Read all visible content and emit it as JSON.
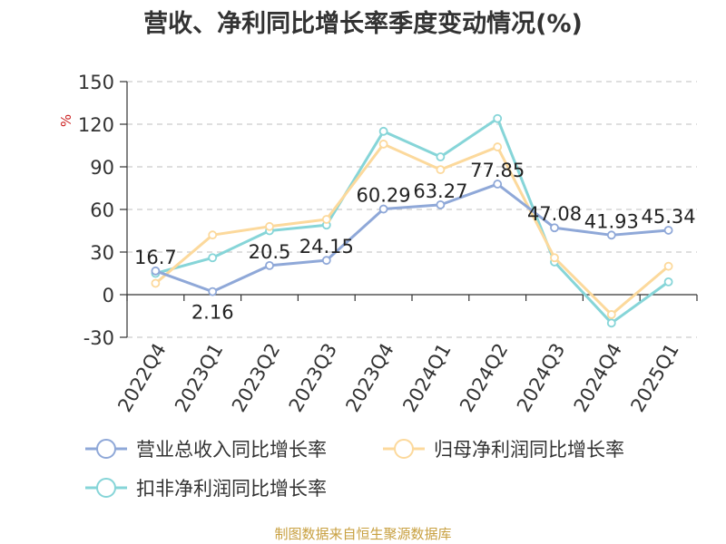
{
  "title": "营收、净利同比增长率季度变动情况(%)",
  "source_note": "制图数据来自恒生聚源数据库",
  "chart_data": {
    "type": "line",
    "title": "营收、净利同比增长率季度变动情况(%)",
    "ylabel": "%",
    "xlabel": "",
    "ylim": [
      -30,
      150
    ],
    "yticks": [
      -30,
      0,
      30,
      60,
      90,
      120,
      150
    ],
    "grid": true,
    "legend_position": "bottom",
    "categories": [
      "2022Q4",
      "2023Q1",
      "2023Q2",
      "2023Q3",
      "2023Q4",
      "2024Q1",
      "2024Q2",
      "2024Q3",
      "2024Q4",
      "2025Q1"
    ],
    "series": [
      {
        "name": "营业总收入同比增长率",
        "color": "#8fa8d8",
        "values": [
          16.7,
          2.16,
          20.5,
          24.15,
          60.29,
          63.27,
          77.85,
          47.08,
          41.93,
          45.34
        ],
        "labels": [
          "16.7",
          "2.16",
          "20.5",
          "24.15",
          "60.29",
          "63.27",
          "77.85",
          "47.08",
          "41.93",
          "45.34"
        ]
      },
      {
        "name": "归母净利润同比增长率",
        "color": "#fcd99c",
        "values": [
          8,
          42,
          48,
          53,
          106,
          88,
          104,
          26,
          -14,
          20
        ],
        "labels": []
      },
      {
        "name": "扣非净利润同比增长率",
        "color": "#86d5d8",
        "values": [
          15,
          26,
          45,
          49,
          115,
          97,
          124,
          23,
          -20,
          9
        ],
        "labels": []
      }
    ]
  }
}
